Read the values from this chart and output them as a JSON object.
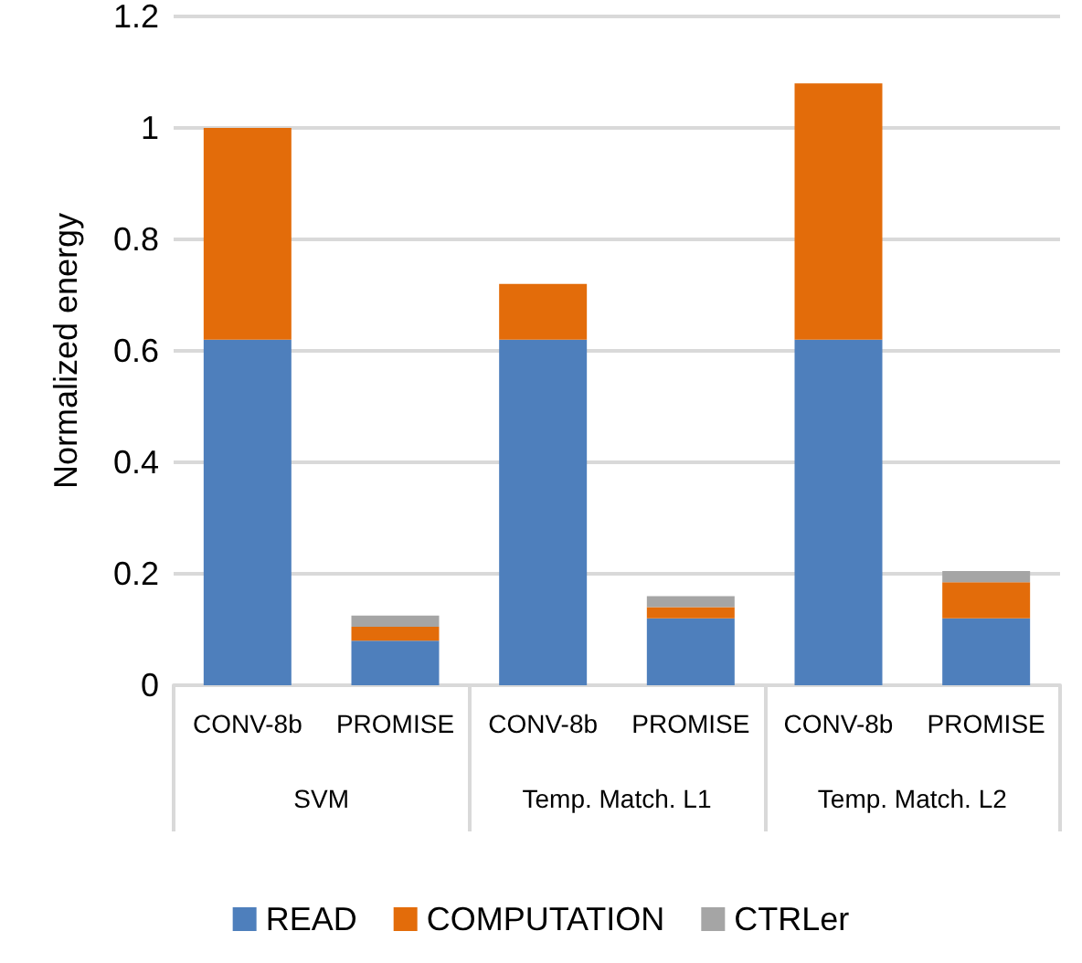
{
  "chart_data": {
    "type": "bar",
    "stacked": true,
    "ylabel": "Normalized energy",
    "categories": [
      "CONV-8b",
      "PROMISE",
      "CONV-8b",
      "PROMISE",
      "CONV-8b",
      "PROMISE"
    ],
    "annotations": [
      "SVM",
      "Temp. Match. L1",
      "Temp. Match. L2"
    ],
    "series": [
      {
        "name": "READ",
        "color": "#4e7fbc",
        "values": [
          0.62,
          0.08,
          0.62,
          0.12,
          0.62,
          0.12
        ]
      },
      {
        "name": "COMPUTATION",
        "color": "#e36c0a",
        "values": [
          0.38,
          0.025,
          0.1,
          0.02,
          0.46,
          0.065
        ]
      },
      {
        "name": "CTRLer",
        "color": "#a5a5a5",
        "values": [
          0,
          0.02,
          0,
          0.02,
          0,
          0.02
        ]
      }
    ],
    "ylim": [
      0,
      1.2
    ],
    "yticks": [
      0,
      0.2,
      0.4,
      0.6,
      0.8,
      1,
      1.2
    ],
    "grid": "y",
    "legend": "bottom"
  }
}
